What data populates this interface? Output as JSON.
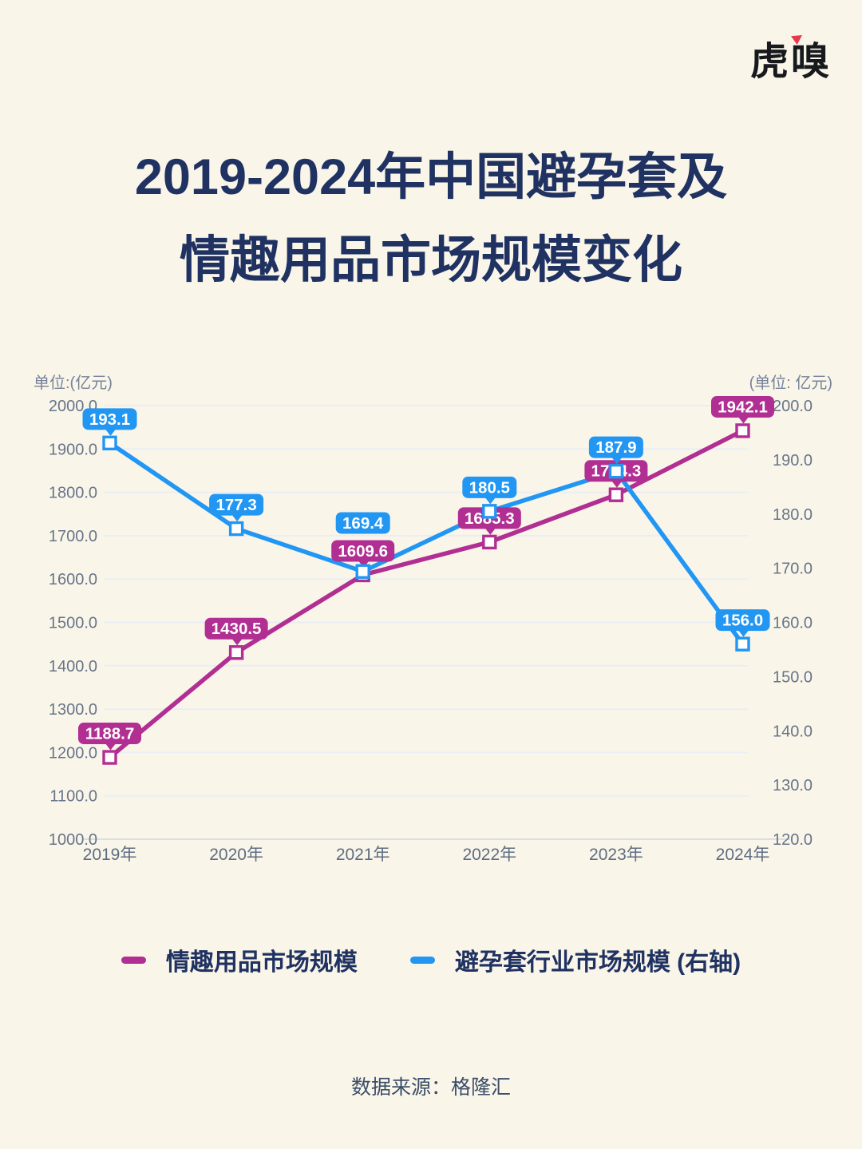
{
  "page": {
    "background": "#FAF5E9"
  },
  "logo": {
    "text": "虎嗅",
    "accent_color": "#E8394A"
  },
  "title": {
    "line1": "2019-2024年中国避孕套及",
    "line2": "情趣用品市场规模变化",
    "color": "#1F3261"
  },
  "chart_data": {
    "type": "line",
    "categories": [
      "2019年",
      "2020年",
      "2021年",
      "2022年",
      "2023年",
      "2024年"
    ],
    "series": [
      {
        "name": "情趣用品市场规模",
        "axis": "left",
        "color": "#B12E92",
        "values": [
          1188.7,
          1430.5,
          1609.6,
          1685.3,
          1794.3,
          1942.1
        ]
      },
      {
        "name": "避孕套行业市场规模 (右轴)",
        "axis": "right",
        "color": "#2196F3",
        "values": [
          193.1,
          177.3,
          169.4,
          180.5,
          187.9,
          156.0
        ]
      }
    ],
    "left_axis": {
      "label": "单位:(亿元)",
      "min": 1000,
      "max": 2000,
      "step": 100,
      "decimals": 1
    },
    "right_axis": {
      "label": "(单位: 亿元)",
      "min": 120,
      "max": 200,
      "step": 10,
      "decimals": 1
    },
    "grid": "horizontal",
    "legend_position": "bottom",
    "marker": "open-square",
    "data_labels": "all",
    "tick_color": "#66758A",
    "grid_color": "#E9EEF5",
    "axis_line_color": "#DBDEE3"
  },
  "source": {
    "text": "数据来源：格隆汇"
  }
}
